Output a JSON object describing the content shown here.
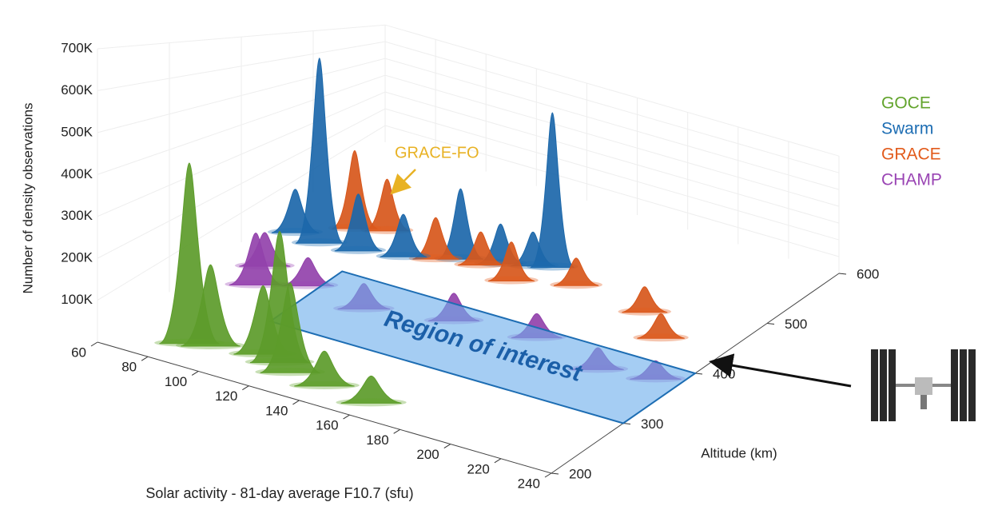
{
  "chart_data": {
    "type": "surface3d",
    "y_label": "Number of density observations",
    "x_label": "Solar activity - 81-day average F10.7 (sfu)",
    "z_label": "Altitude (km)",
    "xlim": [
      60,
      240
    ],
    "xticks": [
      60,
      80,
      100,
      120,
      140,
      160,
      180,
      200,
      220,
      240
    ],
    "zlim": [
      200,
      600
    ],
    "zticks": [
      200,
      300,
      400,
      500,
      600
    ],
    "ylim": [
      0,
      700000
    ],
    "yticks": [
      {
        "value": 100000,
        "label": "100K"
      },
      {
        "value": 200000,
        "label": "200K"
      },
      {
        "value": 300000,
        "label": "300K"
      },
      {
        "value": 400000,
        "label": "400K"
      },
      {
        "value": 500000,
        "label": "500K"
      },
      {
        "value": 600000,
        "label": "600K"
      },
      {
        "value": 700000,
        "label": "700K"
      }
    ],
    "grid": true,
    "series": [
      {
        "name": "GOCE",
        "color": "#62a42c",
        "x": [
          85,
          92,
          110,
          118,
          125,
          140,
          160
        ],
        "z": [
          240,
          245,
          255,
          250,
          240,
          235,
          230
        ],
        "values": [
          450000,
          200000,
          170000,
          330000,
          220000,
          80000,
          60000
        ]
      },
      {
        "name": "Swarm",
        "color": "#1d6db3",
        "x": [
          70,
          81,
          95,
          110,
          127,
          140,
          150,
          156
        ],
        "z": [
          440,
          435,
          440,
          450,
          470,
          480,
          490,
          496
        ],
        "values": [
          150000,
          670000,
          200000,
          150000,
          270000,
          150000,
          130000,
          650000
        ]
      },
      {
        "name": "GRACE",
        "color": "#e25b1c",
        "x": [
          85,
          95,
          120,
          135,
          150,
          170,
          200,
          215
        ],
        "z": [
          470,
          480,
          460,
          470,
          460,
          480,
          470,
          440
        ],
        "values": [
          300000,
          200000,
          150000,
          120000,
          140000,
          100000,
          90000,
          80000
        ]
      },
      {
        "name": "CHAMP",
        "color": "#9a45b4",
        "x": [
          75,
          80,
          95,
          120,
          150,
          180,
          210,
          230
        ],
        "z": [
          380,
          350,
          370,
          360,
          380,
          390,
          370,
          380
        ],
        "values": [
          100000,
          150000,
          80000,
          70000,
          80000,
          70000,
          60000,
          50000
        ]
      }
    ],
    "annotation": {
      "text": "GRACE-FO",
      "color": "#e8b224"
    },
    "region": {
      "label": "Region of interest",
      "xlim": [
        100,
        240
      ],
      "zlim": [
        300,
        400
      ]
    }
  }
}
